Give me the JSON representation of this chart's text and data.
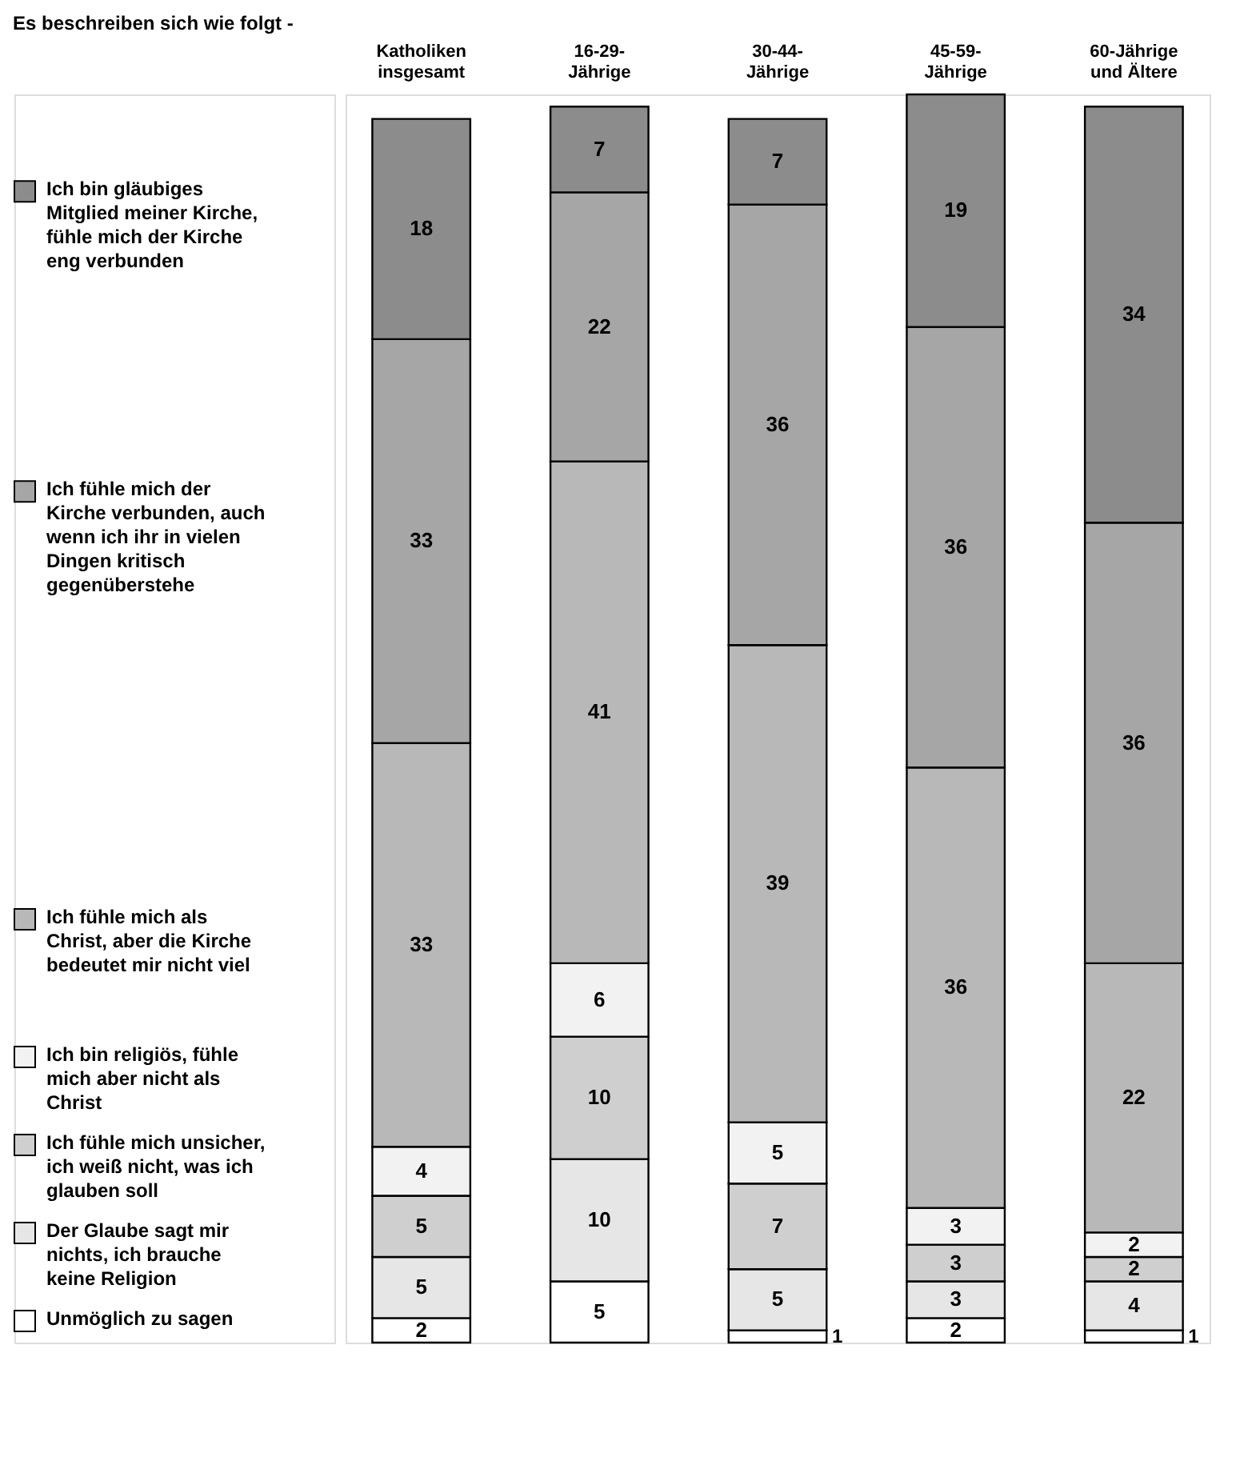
{
  "chart_data": {
    "type": "bar",
    "stacked": true,
    "data_labels": true,
    "legend": "left",
    "title": "Es beschreiben sich wie folgt -",
    "categories": [
      "Katholiken insgesamt",
      "16-29-Jährige",
      "30-44-Jährige",
      "45-59-Jährige",
      "60-Jährige und Ältere"
    ],
    "series": [
      {
        "name": "Unmöglich zu sagen",
        "color": "#ffffff",
        "values": [
          2,
          5,
          1,
          2,
          1
        ]
      },
      {
        "name": "Der Glaube sagt mir nichts, ich brauche keine Religion",
        "color": "#e6e6e6",
        "values": [
          5,
          10,
          5,
          3,
          4
        ]
      },
      {
        "name": "Ich fühle mich unsicher, ich weiß nicht, was ich glauben soll",
        "color": "#cfcfcf",
        "values": [
          5,
          10,
          7,
          3,
          2
        ]
      },
      {
        "name": "Ich bin religiös, fühle mich aber nicht als Christ",
        "color": "#f2f2f2",
        "values": [
          4,
          6,
          5,
          3,
          2
        ]
      },
      {
        "name": "Ich fühle mich als Christ, aber die Kirche bedeutet mir nicht viel",
        "color": "#b8b8b8",
        "values": [
          33,
          41,
          39,
          36,
          22
        ]
      },
      {
        "name": "Ich fühle mich der Kirche verbunden, auch wenn ich ihr in vielen Dingen kritisch gegenüberstehe",
        "color": "#a6a6a6",
        "values": [
          33,
          22,
          36,
          36,
          36
        ]
      },
      {
        "name": "Ich bin gläubiges Mitglied meiner Kirche, fühle mich der Kirche eng verbunden",
        "color": "#8c8c8c",
        "values": [
          18,
          7,
          7,
          19,
          34
        ]
      }
    ]
  }
}
